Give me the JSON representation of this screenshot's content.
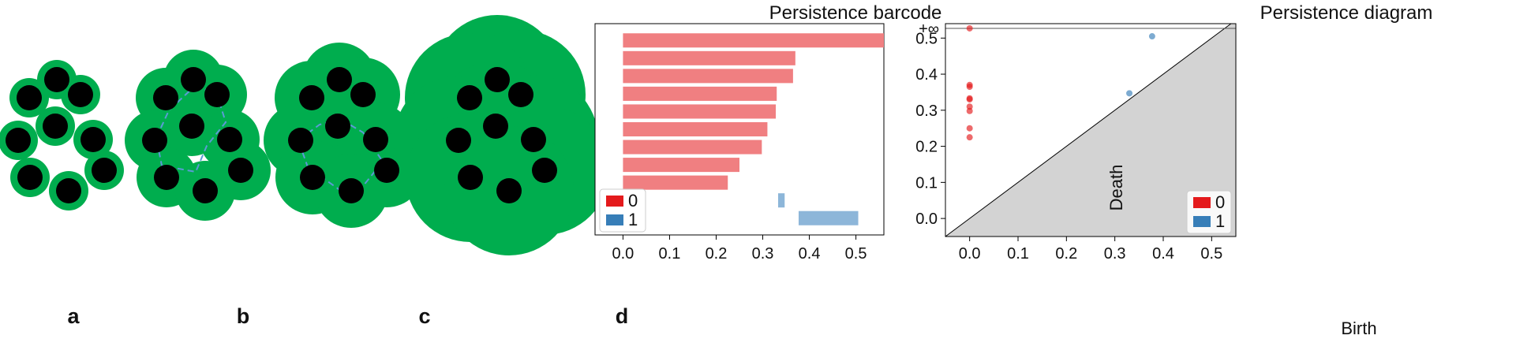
{
  "filtration_panels": {
    "labels": [
      "a",
      "b",
      "c",
      "d"
    ]
  },
  "colors": {
    "green": "#00ad4e",
    "black": "#000000",
    "red": "#e41a1c",
    "blue": "#377eb8",
    "bar_red": "#f07f81",
    "bar_blue": "#8db6d9",
    "diagram_fill": "#d3d3d3"
  },
  "chart_data": [
    {
      "type": "barcode",
      "title": "Persistence barcode",
      "xlim": [
        -0.06,
        0.56
      ],
      "xticks": [
        "0.0",
        "0.1",
        "0.2",
        "0.3",
        "0.4",
        "0.5"
      ],
      "xtick_values": [
        0.0,
        0.1,
        0.2,
        0.3,
        0.4,
        0.5
      ],
      "series": [
        {
          "name": "0",
          "bars": [
            [
              0,
              0.56
            ],
            [
              0,
              0.37
            ],
            [
              0,
              0.365
            ],
            [
              0,
              0.33
            ],
            [
              0,
              0.328
            ],
            [
              0,
              0.31
            ],
            [
              0,
              0.298
            ],
            [
              0,
              0.25
            ],
            [
              0,
              0.225
            ]
          ]
        },
        {
          "name": "1",
          "bars": [
            [
              0.333,
              0.347
            ],
            [
              0.377,
              0.505
            ]
          ]
        }
      ],
      "legend": {
        "placement": "bottom-left",
        "entries": [
          "0",
          "1"
        ]
      }
    },
    {
      "type": "scatter",
      "title": "Persistence diagram",
      "xlabel": "Birth",
      "ylabel": "Death",
      "xlim": [
        -0.05,
        0.55
      ],
      "ylim": [
        -0.05,
        0.54
      ],
      "xticks": [
        "0.0",
        "0.1",
        "0.2",
        "0.3",
        "0.4",
        "0.5"
      ],
      "xtick_values": [
        0.0,
        0.1,
        0.2,
        0.3,
        0.4,
        0.5
      ],
      "yticks": [
        "0.0",
        "0.1",
        "0.2",
        "0.3",
        "0.4",
        "0.5"
      ],
      "ytick_values": [
        0.0,
        0.1,
        0.2,
        0.3,
        0.4,
        0.5
      ],
      "infinity_label": "+∞",
      "infinity_value": 0.527,
      "series": [
        {
          "name": "0",
          "points": [
            [
              0,
              0.527
            ],
            [
              0,
              0.37
            ],
            [
              0,
              0.365
            ],
            [
              0,
              0.333
            ],
            [
              0,
              0.33
            ],
            [
              0,
              0.31
            ],
            [
              0,
              0.298
            ],
            [
              0,
              0.25
            ],
            [
              0,
              0.225
            ]
          ]
        },
        {
          "name": "1",
          "points": [
            [
              0.33,
              0.347
            ],
            [
              0.377,
              0.505
            ]
          ]
        }
      ],
      "legend": {
        "placement": "bottom-right",
        "entries": [
          "0",
          "1"
        ]
      }
    }
  ]
}
